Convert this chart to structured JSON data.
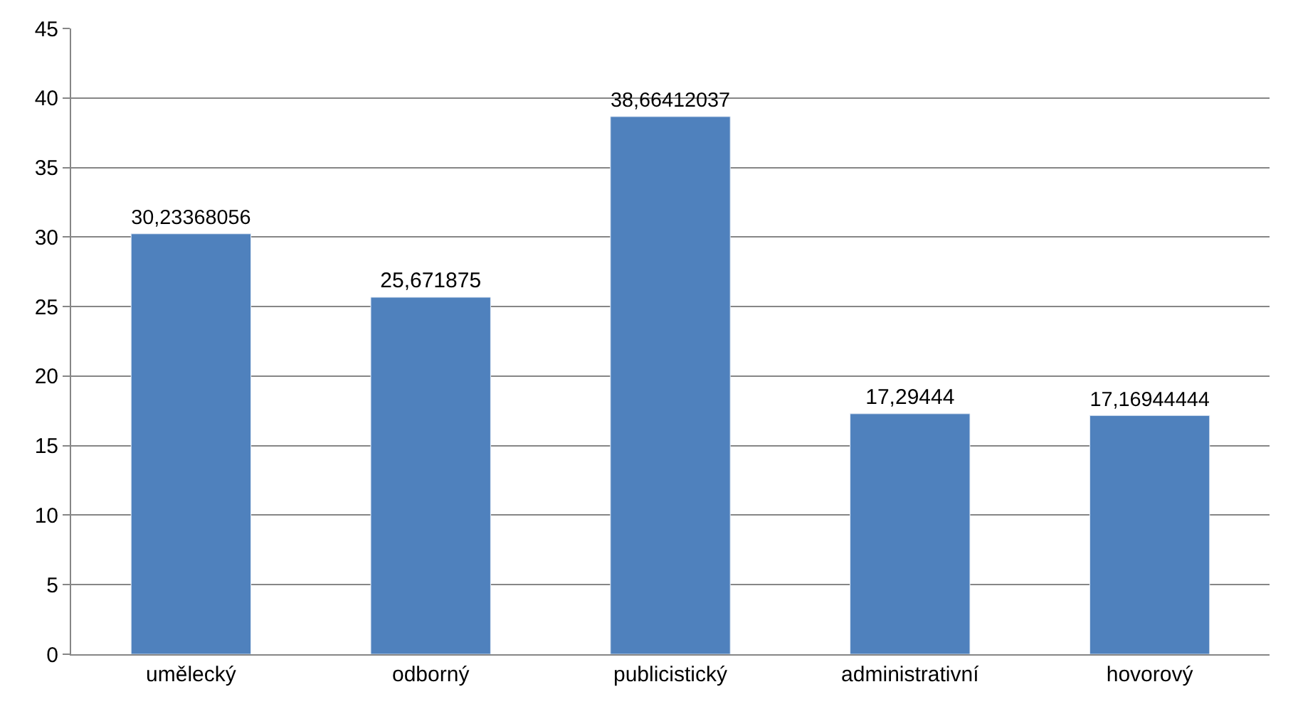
{
  "chart_data": {
    "type": "bar",
    "categories": [
      "umělecký",
      "odborný",
      "publicistický",
      "administrativní",
      "hovorový"
    ],
    "values": [
      30.23368056,
      25.671875,
      38.66412037,
      17.29444,
      17.16944444
    ],
    "value_labels": [
      "30,23368056",
      "25,671875",
      "38,66412037",
      "17,29444",
      "17,16944444"
    ],
    "color": "#4f81bd",
    "ylim": [
      0,
      45
    ],
    "yticks": [
      0,
      5,
      10,
      15,
      20,
      25,
      30,
      35,
      40,
      45
    ],
    "grid": "y",
    "legend": false
  }
}
